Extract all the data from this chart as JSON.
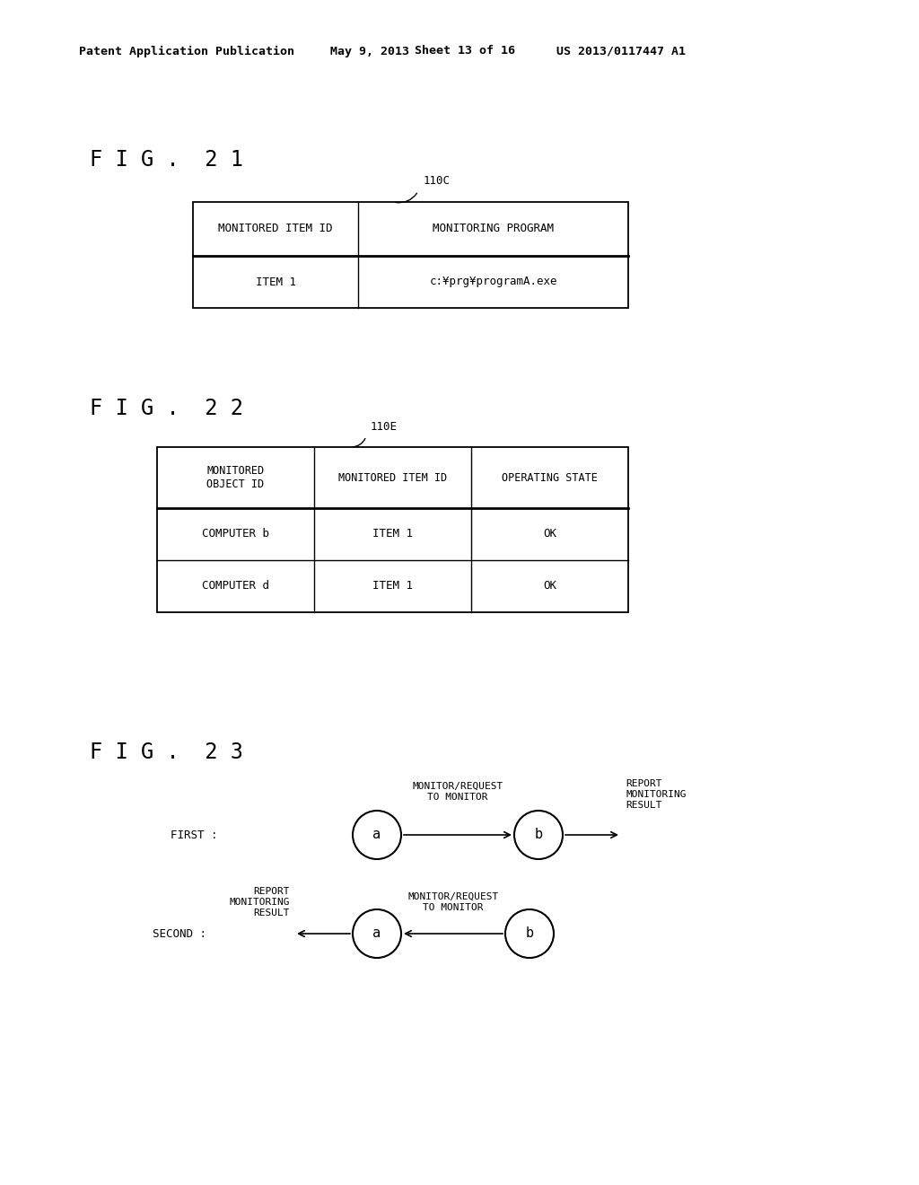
{
  "bg_color": "#ffffff",
  "header_line1": "Patent Application Publication",
  "header_line2": "May 9, 2013",
  "header_line3": "Sheet 13 of 16",
  "header_line4": "US 2013/0117447 A1",
  "fig21_label": "F I G .  2 1",
  "fig22_label": "F I G .  2 2",
  "fig23_label": "F I G .  2 3",
  "fig21_ref": "110C",
  "fig22_ref": "110E",
  "fig21_headers": [
    "MONITORED ITEM ID",
    "MONITORING PROGRAM"
  ],
  "fig21_data": [
    [
      "ITEM 1",
      "c:¥prg¥programA.exe"
    ]
  ],
  "fig22_headers": [
    "MONITORED\nOBJECT ID",
    "MONITORED ITEM ID",
    "OPERATING STATE"
  ],
  "fig22_data": [
    [
      "COMPUTER b",
      "ITEM 1",
      "OK"
    ],
    [
      "COMPUTER d",
      "ITEM 1",
      "OK"
    ]
  ],
  "fig23_first_label": "FIRST :",
  "fig23_second_label": "SECOND :",
  "fig23_arrow1_label": "MONITOR/REQUEST\nTO MONITOR",
  "fig23_arrow2_label": "REPORT\nMONITORING\nRESULT",
  "fig23_arrow3_label": "MONITOR/REQUEST\nTO MONITOR",
  "fig23_arrow4_label": "REPORT\nMONITORING\nRESULT",
  "font_family": "DejaVu Sans Mono"
}
